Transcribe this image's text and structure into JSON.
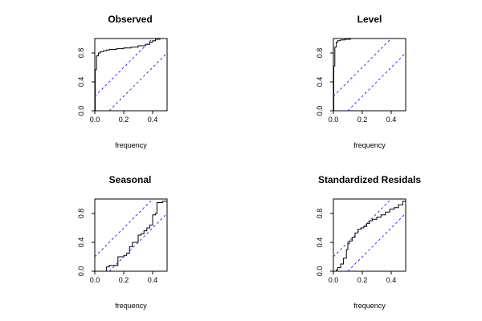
{
  "chart_data": [
    {
      "type": "line",
      "title": "Observed",
      "xlabel": "frequency",
      "ylabel": "",
      "xlim": [
        0,
        0.5
      ],
      "ylim": [
        0,
        1
      ],
      "x_ticks": [
        "0.0",
        "0.2",
        "0.4"
      ],
      "y_ticks": [
        "0.0",
        "0.4",
        "0.8"
      ],
      "series": [
        {
          "style": "step",
          "x": [
            0,
            0.003,
            0.003,
            0.012,
            0.012,
            0.025,
            0.04,
            0.06,
            0.08,
            0.1,
            0.15,
            0.2,
            0.25,
            0.3,
            0.35,
            0.38,
            0.4,
            0.42,
            0.45,
            0.5
          ],
          "y": [
            0,
            0,
            0.57,
            0.57,
            0.76,
            0.8,
            0.82,
            0.83,
            0.84,
            0.85,
            0.86,
            0.87,
            0.88,
            0.9,
            0.92,
            0.95,
            0.97,
            0.99,
            1.0,
            1.0
          ]
        },
        {
          "style": "dashed-band",
          "x": [
            0,
            0.5
          ],
          "y": [
            0.2,
            1.2
          ]
        },
        {
          "style": "dashed-band",
          "x": [
            0.1,
            0.5
          ],
          "y": [
            0,
            0.8
          ]
        }
      ]
    },
    {
      "type": "line",
      "title": "Level",
      "xlabel": "frequency",
      "ylabel": "",
      "xlim": [
        0,
        0.5
      ],
      "ylim": [
        0,
        1
      ],
      "x_ticks": [
        "0.0",
        "0.2",
        "0.4"
      ],
      "y_ticks": [
        "0.0",
        "0.4",
        "0.8"
      ],
      "series": [
        {
          "style": "step",
          "x": [
            0,
            0.003,
            0.003,
            0.01,
            0.01,
            0.02,
            0.03,
            0.05,
            0.08,
            0.12,
            0.2,
            0.5
          ],
          "y": [
            0,
            0,
            0.62,
            0.62,
            0.88,
            0.95,
            0.97,
            0.98,
            0.99,
            1.0,
            1.0,
            1.0
          ]
        },
        {
          "style": "dashed-band",
          "x": [
            0,
            0.5
          ],
          "y": [
            0.2,
            1.2
          ]
        },
        {
          "style": "dashed-band",
          "x": [
            0.1,
            0.5
          ],
          "y": [
            0,
            0.8
          ]
        }
      ]
    },
    {
      "type": "line",
      "title": "Seasonal",
      "xlabel": "frequency",
      "ylabel": "",
      "xlim": [
        0,
        0.5
      ],
      "ylim": [
        0,
        1
      ],
      "x_ticks": [
        "0.0",
        "0.2",
        "0.4"
      ],
      "y_ticks": [
        "0.0",
        "0.4",
        "0.8"
      ],
      "series": [
        {
          "style": "step",
          "x": [
            0,
            0.08,
            0.08,
            0.1,
            0.1,
            0.14,
            0.16,
            0.16,
            0.2,
            0.22,
            0.24,
            0.26,
            0.3,
            0.32,
            0.34,
            0.36,
            0.38,
            0.4,
            0.42,
            0.43,
            0.47,
            0.5
          ],
          "y": [
            0,
            0,
            0.06,
            0.07,
            0.08,
            0.08,
            0.1,
            0.2,
            0.22,
            0.25,
            0.34,
            0.4,
            0.5,
            0.52,
            0.56,
            0.6,
            0.64,
            0.78,
            0.8,
            0.95,
            0.97,
            1.0
          ]
        },
        {
          "style": "dashed-band",
          "x": [
            0,
            0.5
          ],
          "y": [
            0.2,
            1.2
          ]
        },
        {
          "style": "dashed-band",
          "x": [
            0.1,
            0.5
          ],
          "y": [
            0,
            0.8
          ]
        }
      ]
    },
    {
      "type": "line",
      "title": "Standardized Residals",
      "xlabel": "frequency",
      "ylabel": "",
      "xlim": [
        0,
        0.5
      ],
      "ylim": [
        0,
        1
      ],
      "x_ticks": [
        "0.0",
        "0.2",
        "0.4"
      ],
      "y_ticks": [
        "0.0",
        "0.4",
        "0.8"
      ],
      "series": [
        {
          "style": "step",
          "x": [
            0,
            0.02,
            0.03,
            0.05,
            0.07,
            0.09,
            0.1,
            0.11,
            0.13,
            0.15,
            0.17,
            0.19,
            0.21,
            0.23,
            0.25,
            0.27,
            0.3,
            0.33,
            0.36,
            0.39,
            0.42,
            0.45,
            0.48,
            0.5
          ],
          "y": [
            0,
            0.02,
            0.05,
            0.1,
            0.18,
            0.3,
            0.38,
            0.42,
            0.47,
            0.53,
            0.58,
            0.6,
            0.62,
            0.66,
            0.7,
            0.72,
            0.75,
            0.78,
            0.82,
            0.86,
            0.88,
            0.92,
            0.97,
            1.0
          ]
        },
        {
          "style": "dashed-band",
          "x": [
            0,
            0.5
          ],
          "y": [
            0.2,
            1.2
          ]
        },
        {
          "style": "dashed-band",
          "x": [
            0.1,
            0.5
          ],
          "y": [
            0,
            0.8
          ]
        }
      ]
    }
  ],
  "colors": {
    "step": "#000000",
    "band": "#3333ff",
    "frame": "#000000"
  }
}
